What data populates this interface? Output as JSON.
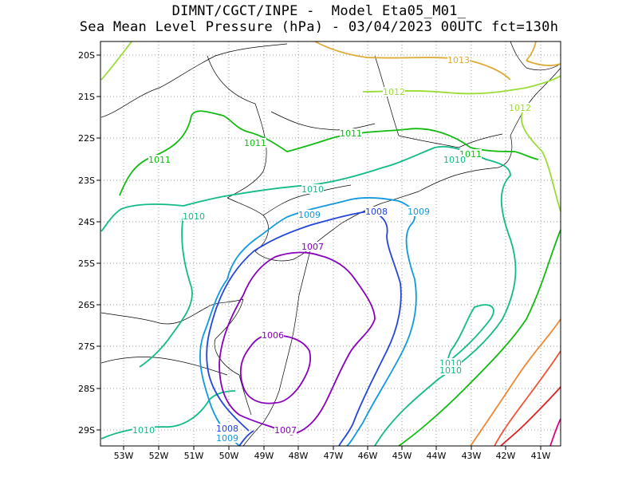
{
  "header": {
    "line1": "DIMNT/CGCT/INPE -  Model Eta05_M01_",
    "line2": "Sea Mean Level Pressure (hPa) - 03/04/2023 00UTC fct=130h"
  },
  "axes": {
    "lon_labels": [
      "53W",
      "52W",
      "51W",
      "50W",
      "49W",
      "48W",
      "47W",
      "46W",
      "45W",
      "44W",
      "43W",
      "42W",
      "41W"
    ],
    "lat_labels": [
      "20S",
      "21S",
      "22S",
      "23S",
      "24S",
      "25S",
      "26S",
      "27S",
      "28S",
      "29S"
    ]
  },
  "colors": {
    "c1006": "#8800bb",
    "c1007": "#8800bb",
    "c1008": "#2244dd",
    "c1009": "#1199dd",
    "c1010": "#11bb88",
    "c1011": "#11bb11",
    "c1012": "#99dd33",
    "c1013": "#ddaa33",
    "c1014": "#ee8833",
    "c1015": "#ee5533",
    "c1016": "#dd2222",
    "c1017": "#dd0088",
    "border": "#000000"
  },
  "contour_labels": [
    {
      "text": "1013",
      "color": "#ddaa33"
    },
    {
      "text": "1012",
      "color": "#99dd33"
    },
    {
      "text": "1012",
      "color": "#99dd33"
    },
    {
      "text": "1011",
      "color": "#11bb11"
    },
    {
      "text": "1011",
      "color": "#11bb11"
    },
    {
      "text": "1011",
      "color": "#11bb11"
    },
    {
      "text": "1011",
      "color": "#11bb11"
    },
    {
      "text": "1010",
      "color": "#11bb88"
    },
    {
      "text": "1010",
      "color": "#11bb88"
    },
    {
      "text": "1010",
      "color": "#11bb88"
    },
    {
      "text": "1010",
      "color": "#11bb88"
    },
    {
      "text": "1010",
      "color": "#11bb88"
    },
    {
      "text": "1010",
      "color": "#11bb88"
    },
    {
      "text": "1009",
      "color": "#1199dd"
    },
    {
      "text": "1009",
      "color": "#1199dd"
    },
    {
      "text": "1009",
      "color": "#1199dd"
    },
    {
      "text": "1008",
      "color": "#2244dd"
    },
    {
      "text": "1008",
      "color": "#2244dd"
    },
    {
      "text": "1007",
      "color": "#8800bb"
    },
    {
      "text": "1007",
      "color": "#8800bb"
    },
    {
      "text": "1006",
      "color": "#8800bb"
    }
  ]
}
